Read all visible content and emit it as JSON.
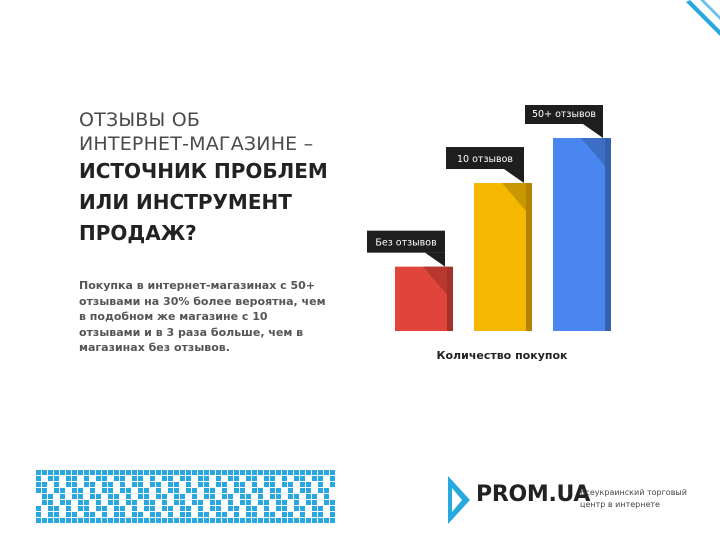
{
  "title": {
    "light_line1": "ОТЗЫВЫ ОБ",
    "light_line2": "ИНТЕРНЕТ-МАГАЗИНЕ –",
    "bold_line1": "ИСТОЧНИК ПРОБЛЕМ",
    "bold_line2": "ИЛИ ИНСТРУМЕНТ",
    "bold_line3": "ПРОДАЖ?"
  },
  "body_text": "Покупка в интернет-магазинах с 50+ отзывами на 30% более вероятна, чем в подобном же магазине с 10 отзывами и в 3 раза больше, чем в магазинах без отзывов.",
  "chart_data": {
    "type": "bar",
    "categories": [
      "Без отзывов",
      "10 отзывов",
      "50+ отзывов"
    ],
    "values": [
      1,
      2.3,
      3
    ],
    "colors": [
      "#e0443a",
      "#f5b800",
      "#4a86f0"
    ],
    "xlabel": "Количество покупок",
    "ylabel": "",
    "ylim": [
      0,
      3
    ],
    "grid": false,
    "legend": "none"
  },
  "brand": {
    "logo_text": "PROM.UA",
    "tagline": "Всеукраинский торговый центр в интернете",
    "accent": "#29a8e0"
  }
}
